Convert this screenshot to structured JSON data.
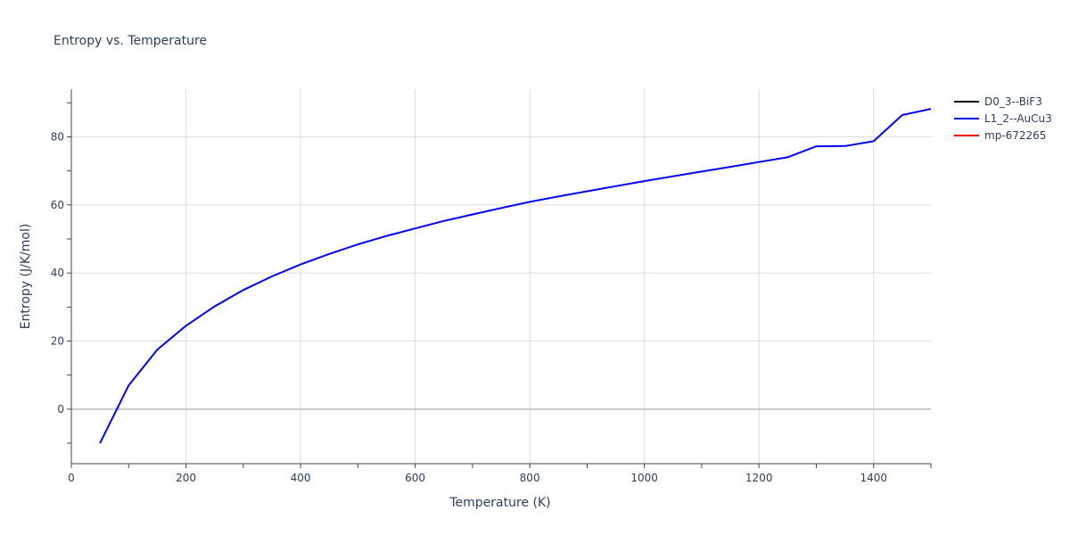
{
  "chart_data": {
    "type": "line",
    "title": "Entropy vs. Temperature",
    "xlabel": "Temperature (K)",
    "ylabel": "Entropy (J/K/mol)",
    "xlim": [
      0,
      1500
    ],
    "ylim": [
      -16,
      94
    ],
    "xticks": [
      0,
      200,
      400,
      600,
      800,
      1000,
      1200,
      1400
    ],
    "yticks": [
      0,
      20,
      40,
      60,
      80
    ],
    "grid": true,
    "legend_position": "right",
    "series": [
      {
        "name": "D0_3--BiF3",
        "color": "#000000",
        "x": [],
        "y": []
      },
      {
        "name": "L1_2--AuCu3",
        "color": "#0000ff",
        "x": [
          50,
          100,
          150,
          200,
          250,
          300,
          350,
          400,
          450,
          500,
          550,
          600,
          650,
          700,
          750,
          800,
          850,
          900,
          950,
          1000,
          1050,
          1100,
          1150,
          1200,
          1250,
          1300,
          1350,
          1400,
          1450,
          1500
        ],
        "y": [
          -10,
          7,
          17.5,
          24.5,
          30.2,
          35,
          39,
          42.5,
          45.6,
          48.4,
          50.9,
          53.1,
          55.3,
          57.2,
          59.1,
          60.9,
          62.5,
          64,
          65.5,
          67,
          68.4,
          69.8,
          71.2,
          72.6,
          74,
          77.2,
          77.3,
          78.7,
          86.4,
          88.2
        ]
      },
      {
        "name": "mp-672265",
        "color": "#ff0000",
        "x": [],
        "y": []
      }
    ]
  }
}
